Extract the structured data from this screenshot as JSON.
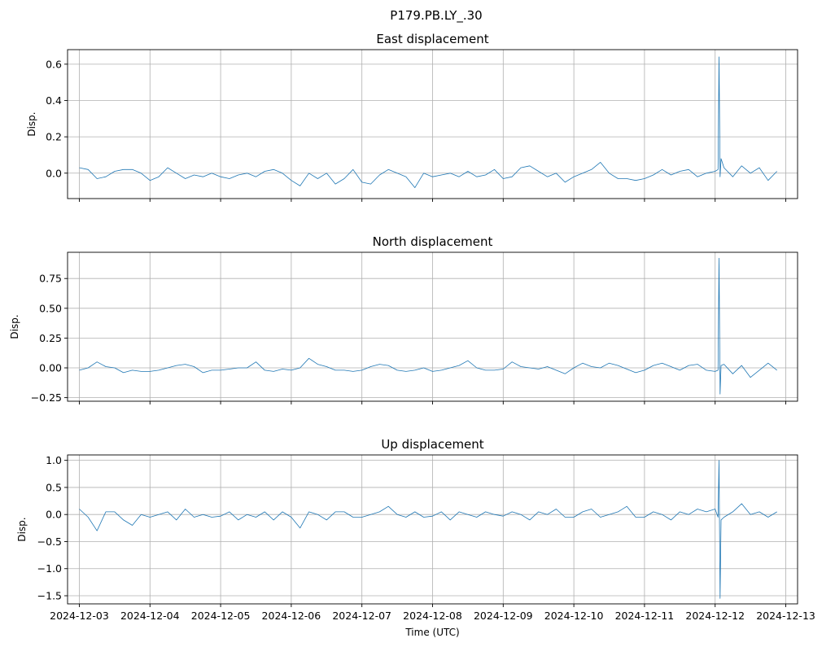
{
  "figure_title": "P179.PB.LY_.30",
  "colors": {
    "series": "#1f77b4",
    "grid": "#b0b0b0"
  },
  "chart_data": [
    {
      "type": "line",
      "title": "East displacement",
      "ylabel": "Disp.",
      "xlabel": "",
      "xlim": [
        "2024-12-02T20:00",
        "2024-12-13T04:00"
      ],
      "ylim": [
        -0.14,
        0.68
      ],
      "yticks": [
        0.0,
        0.2,
        0.4,
        0.6
      ],
      "ytick_labels": [
        "0.0",
        "0.2",
        "0.4",
        "0.6"
      ],
      "grid": true,
      "series": [
        {
          "x": [
            "2024-12-03T00:00",
            "2024-12-03T03:00",
            "2024-12-03T06:00",
            "2024-12-03T09:00",
            "2024-12-03T12:00",
            "2024-12-03T15:00",
            "2024-12-03T18:00",
            "2024-12-03T21:00",
            "2024-12-04T00:00",
            "2024-12-04T03:00",
            "2024-12-04T06:00",
            "2024-12-04T09:00",
            "2024-12-04T12:00",
            "2024-12-04T15:00",
            "2024-12-04T18:00",
            "2024-12-04T21:00",
            "2024-12-05T00:00",
            "2024-12-05T03:00",
            "2024-12-05T06:00",
            "2024-12-05T09:00",
            "2024-12-05T12:00",
            "2024-12-05T15:00",
            "2024-12-05T18:00",
            "2024-12-05T21:00",
            "2024-12-06T00:00",
            "2024-12-06T03:00",
            "2024-12-06T06:00",
            "2024-12-06T09:00",
            "2024-12-06T12:00",
            "2024-12-06T15:00",
            "2024-12-06T18:00",
            "2024-12-06T21:00",
            "2024-12-07T00:00",
            "2024-12-07T03:00",
            "2024-12-07T06:00",
            "2024-12-07T09:00",
            "2024-12-07T12:00",
            "2024-12-07T15:00",
            "2024-12-07T18:00",
            "2024-12-07T21:00",
            "2024-12-08T00:00",
            "2024-12-08T03:00",
            "2024-12-08T06:00",
            "2024-12-08T09:00",
            "2024-12-08T12:00",
            "2024-12-08T15:00",
            "2024-12-08T18:00",
            "2024-12-08T21:00",
            "2024-12-09T00:00",
            "2024-12-09T03:00",
            "2024-12-09T06:00",
            "2024-12-09T09:00",
            "2024-12-09T12:00",
            "2024-12-09T15:00",
            "2024-12-09T18:00",
            "2024-12-09T21:00",
            "2024-12-10T00:00",
            "2024-12-10T03:00",
            "2024-12-10T06:00",
            "2024-12-10T09:00",
            "2024-12-10T12:00",
            "2024-12-10T15:00",
            "2024-12-10T18:00",
            "2024-12-10T21:00",
            "2024-12-11T00:00",
            "2024-12-11T03:00",
            "2024-12-11T06:00",
            "2024-12-11T09:00",
            "2024-12-11T12:00",
            "2024-12-11T15:00",
            "2024-12-11T18:00",
            "2024-12-11T21:00",
            "2024-12-12T00:00",
            "2024-12-12T01:00",
            "2024-12-12T01:20",
            "2024-12-12T01:40",
            "2024-12-12T02:00",
            "2024-12-12T03:00",
            "2024-12-12T06:00",
            "2024-12-12T09:00",
            "2024-12-12T12:00",
            "2024-12-12T15:00",
            "2024-12-12T18:00",
            "2024-12-12T21:00"
          ],
          "y": [
            0.03,
            0.02,
            -0.03,
            -0.02,
            0.01,
            0.02,
            0.02,
            0.0,
            -0.04,
            -0.02,
            0.03,
            0.0,
            -0.03,
            -0.01,
            -0.02,
            0.0,
            -0.02,
            -0.03,
            -0.01,
            0.0,
            -0.02,
            0.01,
            0.02,
            0.0,
            -0.04,
            -0.07,
            0.0,
            -0.03,
            0.0,
            -0.06,
            -0.03,
            0.02,
            -0.05,
            -0.06,
            -0.01,
            0.02,
            0.0,
            -0.02,
            -0.08,
            0.0,
            -0.02,
            -0.01,
            0.0,
            -0.02,
            0.01,
            -0.02,
            -0.01,
            0.02,
            -0.03,
            -0.02,
            0.03,
            0.04,
            0.01,
            -0.02,
            0.0,
            -0.05,
            -0.02,
            0.0,
            0.02,
            0.06,
            0.0,
            -0.03,
            -0.03,
            -0.04,
            -0.03,
            -0.01,
            0.02,
            -0.01,
            0.01,
            0.02,
            -0.02,
            0.0,
            0.01,
            0.02,
            0.64,
            -0.02,
            0.08,
            0.03,
            -0.02,
            0.04,
            0.0,
            0.03,
            -0.04,
            0.01
          ]
        }
      ]
    },
    {
      "type": "line",
      "title": "North displacement",
      "ylabel": "Disp.",
      "xlabel": "",
      "xlim": [
        "2024-12-02T20:00",
        "2024-12-13T04:00"
      ],
      "ylim": [
        -0.28,
        0.97
      ],
      "yticks": [
        -0.25,
        0.0,
        0.25,
        0.5,
        0.75
      ],
      "ytick_labels": [
        "−0.25",
        "0.00",
        "0.25",
        "0.50",
        "0.75"
      ],
      "grid": true,
      "series": [
        {
          "x": [
            "2024-12-03T00:00",
            "2024-12-03T03:00",
            "2024-12-03T06:00",
            "2024-12-03T09:00",
            "2024-12-03T12:00",
            "2024-12-03T15:00",
            "2024-12-03T18:00",
            "2024-12-03T21:00",
            "2024-12-04T00:00",
            "2024-12-04T03:00",
            "2024-12-04T06:00",
            "2024-12-04T09:00",
            "2024-12-04T12:00",
            "2024-12-04T15:00",
            "2024-12-04T18:00",
            "2024-12-04T21:00",
            "2024-12-05T00:00",
            "2024-12-05T03:00",
            "2024-12-05T06:00",
            "2024-12-05T09:00",
            "2024-12-05T12:00",
            "2024-12-05T15:00",
            "2024-12-05T18:00",
            "2024-12-05T21:00",
            "2024-12-06T00:00",
            "2024-12-06T03:00",
            "2024-12-06T06:00",
            "2024-12-06T09:00",
            "2024-12-06T12:00",
            "2024-12-06T15:00",
            "2024-12-06T18:00",
            "2024-12-06T21:00",
            "2024-12-07T00:00",
            "2024-12-07T03:00",
            "2024-12-07T06:00",
            "2024-12-07T09:00",
            "2024-12-07T12:00",
            "2024-12-07T15:00",
            "2024-12-07T18:00",
            "2024-12-07T21:00",
            "2024-12-08T00:00",
            "2024-12-08T03:00",
            "2024-12-08T06:00",
            "2024-12-08T09:00",
            "2024-12-08T12:00",
            "2024-12-08T15:00",
            "2024-12-08T18:00",
            "2024-12-08T21:00",
            "2024-12-09T00:00",
            "2024-12-09T03:00",
            "2024-12-09T06:00",
            "2024-12-09T09:00",
            "2024-12-09T12:00",
            "2024-12-09T15:00",
            "2024-12-09T18:00",
            "2024-12-09T21:00",
            "2024-12-10T00:00",
            "2024-12-10T03:00",
            "2024-12-10T06:00",
            "2024-12-10T09:00",
            "2024-12-10T12:00",
            "2024-12-10T15:00",
            "2024-12-10T18:00",
            "2024-12-10T21:00",
            "2024-12-11T00:00",
            "2024-12-11T03:00",
            "2024-12-11T06:00",
            "2024-12-11T09:00",
            "2024-12-11T12:00",
            "2024-12-11T15:00",
            "2024-12-11T18:00",
            "2024-12-11T21:00",
            "2024-12-12T00:00",
            "2024-12-12T01:00",
            "2024-12-12T01:20",
            "2024-12-12T01:40",
            "2024-12-12T02:00",
            "2024-12-12T03:00",
            "2024-12-12T06:00",
            "2024-12-12T09:00",
            "2024-12-12T12:00",
            "2024-12-12T15:00",
            "2024-12-12T18:00",
            "2024-12-12T21:00"
          ],
          "y": [
            -0.02,
            0.0,
            0.05,
            0.01,
            0.0,
            -0.04,
            -0.02,
            -0.03,
            -0.03,
            -0.02,
            0.0,
            0.02,
            0.03,
            0.01,
            -0.04,
            -0.02,
            -0.02,
            -0.01,
            0.0,
            0.0,
            0.05,
            -0.02,
            -0.03,
            -0.01,
            -0.02,
            0.0,
            0.08,
            0.03,
            0.01,
            -0.02,
            -0.02,
            -0.03,
            -0.02,
            0.01,
            0.03,
            0.02,
            -0.02,
            -0.03,
            -0.02,
            0.0,
            -0.03,
            -0.02,
            0.0,
            0.02,
            0.06,
            0.0,
            -0.02,
            -0.02,
            -0.01,
            0.05,
            0.01,
            0.0,
            -0.01,
            0.01,
            -0.02,
            -0.05,
            0.0,
            0.04,
            0.01,
            0.0,
            0.04,
            0.02,
            -0.01,
            -0.04,
            -0.02,
            0.02,
            0.04,
            0.01,
            -0.02,
            0.02,
            0.03,
            -0.02,
            -0.03,
            -0.02,
            0.92,
            -0.22,
            0.02,
            0.03,
            -0.05,
            0.02,
            -0.08,
            -0.02,
            0.04,
            -0.02
          ]
        }
      ]
    },
    {
      "type": "line",
      "title": "Up displacement",
      "ylabel": "Disp.",
      "xlabel": "Time (UTC)",
      "xlim": [
        "2024-12-02T20:00",
        "2024-12-13T04:00"
      ],
      "ylim": [
        -1.65,
        1.1
      ],
      "yticks": [
        -1.5,
        -1.0,
        -0.5,
        0.0,
        0.5,
        1.0
      ],
      "ytick_labels": [
        "−1.5",
        "−1.0",
        "−0.5",
        "0.0",
        "0.5",
        "1.0"
      ],
      "xticks": [
        "2024-12-03",
        "2024-12-04",
        "2024-12-05",
        "2024-12-06",
        "2024-12-07",
        "2024-12-08",
        "2024-12-09",
        "2024-12-10",
        "2024-12-11",
        "2024-12-12",
        "2024-12-13"
      ],
      "xtick_labels": [
        "2024-12-03",
        "2024-12-04",
        "2024-12-05",
        "2024-12-06",
        "2024-12-07",
        "2024-12-08",
        "2024-12-09",
        "2024-12-10",
        "2024-12-11",
        "2024-12-12",
        "2024-12-13"
      ],
      "grid": true,
      "series": [
        {
          "x": [
            "2024-12-03T00:00",
            "2024-12-03T03:00",
            "2024-12-03T06:00",
            "2024-12-03T09:00",
            "2024-12-03T12:00",
            "2024-12-03T15:00",
            "2024-12-03T18:00",
            "2024-12-03T21:00",
            "2024-12-04T00:00",
            "2024-12-04T03:00",
            "2024-12-04T06:00",
            "2024-12-04T09:00",
            "2024-12-04T12:00",
            "2024-12-04T15:00",
            "2024-12-04T18:00",
            "2024-12-04T21:00",
            "2024-12-05T00:00",
            "2024-12-05T03:00",
            "2024-12-05T06:00",
            "2024-12-05T09:00",
            "2024-12-05T12:00",
            "2024-12-05T15:00",
            "2024-12-05T18:00",
            "2024-12-05T21:00",
            "2024-12-06T00:00",
            "2024-12-06T03:00",
            "2024-12-06T06:00",
            "2024-12-06T09:00",
            "2024-12-06T12:00",
            "2024-12-06T15:00",
            "2024-12-06T18:00",
            "2024-12-06T21:00",
            "2024-12-07T00:00",
            "2024-12-07T03:00",
            "2024-12-07T06:00",
            "2024-12-07T09:00",
            "2024-12-07T12:00",
            "2024-12-07T15:00",
            "2024-12-07T18:00",
            "2024-12-07T21:00",
            "2024-12-08T00:00",
            "2024-12-08T03:00",
            "2024-12-08T06:00",
            "2024-12-08T09:00",
            "2024-12-08T12:00",
            "2024-12-08T15:00",
            "2024-12-08T18:00",
            "2024-12-08T21:00",
            "2024-12-09T00:00",
            "2024-12-09T03:00",
            "2024-12-09T06:00",
            "2024-12-09T09:00",
            "2024-12-09T12:00",
            "2024-12-09T15:00",
            "2024-12-09T18:00",
            "2024-12-09T21:00",
            "2024-12-10T00:00",
            "2024-12-10T03:00",
            "2024-12-10T06:00",
            "2024-12-10T09:00",
            "2024-12-10T12:00",
            "2024-12-10T15:00",
            "2024-12-10T18:00",
            "2024-12-10T21:00",
            "2024-12-11T00:00",
            "2024-12-11T03:00",
            "2024-12-11T06:00",
            "2024-12-11T09:00",
            "2024-12-11T12:00",
            "2024-12-11T15:00",
            "2024-12-11T18:00",
            "2024-12-11T21:00",
            "2024-12-12T00:00",
            "2024-12-12T01:00",
            "2024-12-12T01:20",
            "2024-12-12T01:40",
            "2024-12-12T02:00",
            "2024-12-12T03:00",
            "2024-12-12T06:00",
            "2024-12-12T09:00",
            "2024-12-12T12:00",
            "2024-12-12T15:00",
            "2024-12-12T18:00",
            "2024-12-12T21:00"
          ],
          "y": [
            0.1,
            -0.05,
            -0.3,
            0.05,
            0.05,
            -0.1,
            -0.2,
            0.0,
            -0.05,
            0.0,
            0.05,
            -0.1,
            0.1,
            -0.05,
            0.0,
            -0.05,
            -0.03,
            0.05,
            -0.1,
            0.0,
            -0.05,
            0.05,
            -0.1,
            0.05,
            -0.05,
            -0.25,
            0.05,
            0.0,
            -0.1,
            0.05,
            0.05,
            -0.05,
            -0.05,
            0.0,
            0.05,
            0.15,
            0.0,
            -0.05,
            0.05,
            -0.05,
            -0.03,
            0.05,
            -0.1,
            0.05,
            0.0,
            -0.05,
            0.05,
            0.0,
            -0.03,
            0.05,
            0.0,
            -0.1,
            0.05,
            0.0,
            0.1,
            -0.05,
            -0.05,
            0.05,
            0.1,
            -0.05,
            0.0,
            0.05,
            0.15,
            -0.05,
            -0.05,
            0.05,
            0.0,
            -0.1,
            0.05,
            0.0,
            0.1,
            0.05,
            0.1,
            -0.05,
            1.0,
            -1.55,
            -0.1,
            -0.05,
            0.05,
            0.2,
            0.0,
            0.05,
            -0.05,
            0.05
          ]
        }
      ]
    }
  ]
}
